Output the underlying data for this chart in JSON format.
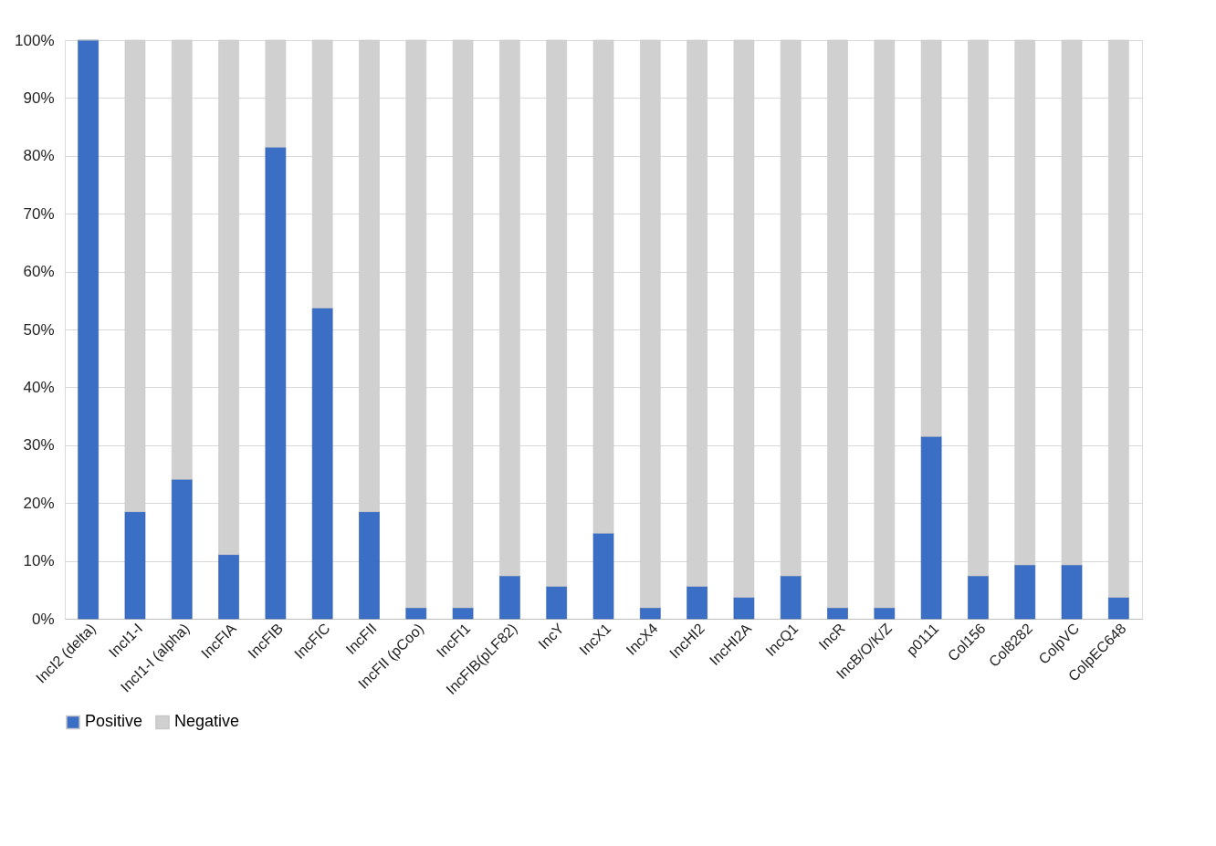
{
  "chart_data": {
    "type": "bar",
    "stacked": true,
    "categories": [
      "IncI2 (delta)",
      "IncI1-I",
      "IncI1-I (alpha)",
      "IncFIA",
      "IncFIB",
      "IncFIC",
      "IncFII",
      "IncFII (pCoo)",
      "IncFI1",
      "IncFIB(pLF82)",
      "IncY",
      "IncX1",
      "IncX4",
      "IncHI2",
      "IncHI2A",
      "IncQ1",
      "IncR",
      "IncB/O/K/Z",
      "p0111",
      "Col156",
      "Col8282",
      "ColpVC",
      "ColpEC648"
    ],
    "series": [
      {
        "name": "Positive",
        "color": "#3b6fc6",
        "values": [
          100,
          18.5,
          24.1,
          11.1,
          81.5,
          53.7,
          18.5,
          1.9,
          1.9,
          7.4,
          5.6,
          14.8,
          1.9,
          5.6,
          3.7,
          7.4,
          1.9,
          1.9,
          31.5,
          7.4,
          9.3,
          9.3,
          3.7
        ]
      },
      {
        "name": "Negative",
        "color": "#d0d0d0",
        "values": [
          0,
          81.5,
          75.9,
          88.9,
          18.5,
          46.3,
          81.5,
          98.1,
          98.1,
          92.6,
          94.4,
          85.2,
          98.1,
          94.4,
          96.3,
          92.6,
          98.1,
          98.1,
          68.5,
          92.6,
          90.7,
          90.7,
          96.3
        ]
      }
    ],
    "ylim": [
      0,
      100
    ],
    "yticks": [
      {
        "value": 0,
        "label": "0%"
      },
      {
        "value": 10,
        "label": "10%"
      },
      {
        "value": 20,
        "label": "20%"
      },
      {
        "value": 30,
        "label": "30%"
      },
      {
        "value": 40,
        "label": "40%"
      },
      {
        "value": 50,
        "label": "50%"
      },
      {
        "value": 60,
        "label": "60%"
      },
      {
        "value": 70,
        "label": "70%"
      },
      {
        "value": 80,
        "label": "80%"
      },
      {
        "value": 90,
        "label": "90%"
      },
      {
        "value": 100,
        "label": "100%"
      }
    ],
    "grid": "y",
    "legend": "bottom"
  }
}
